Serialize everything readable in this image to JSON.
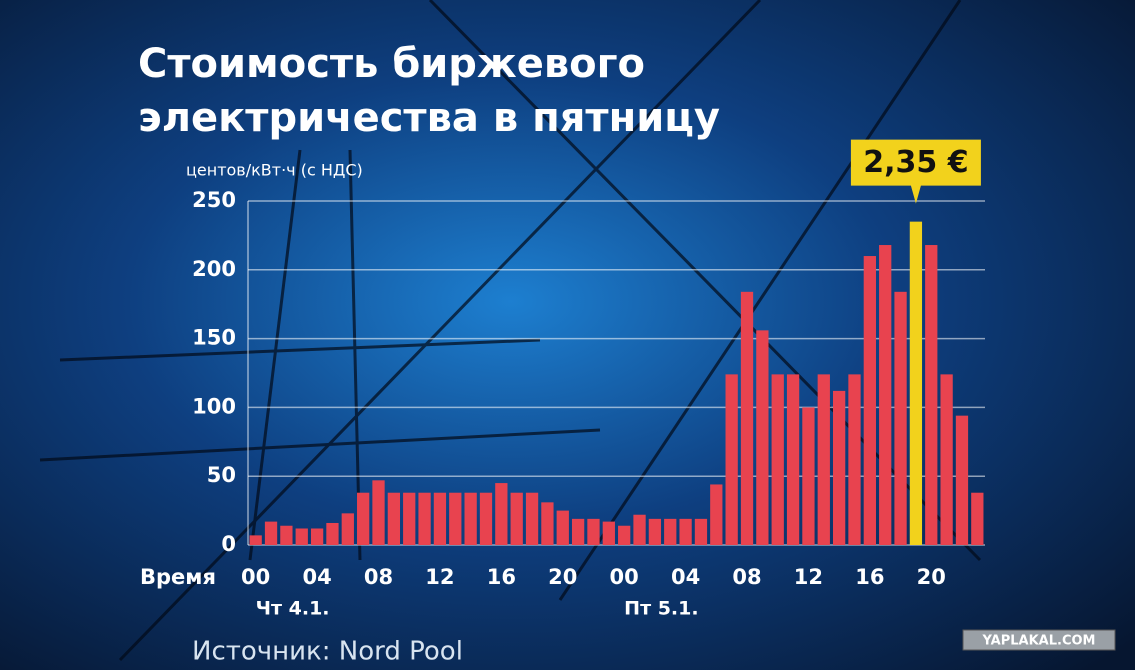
{
  "chart_data": {
    "type": "bar",
    "title": [
      "Стоимость биржевого",
      "электричества в пятницу"
    ],
    "y_label": "центов/кВт·ч (с НДС)",
    "x_label": "Время",
    "categories": [
      "00",
      null,
      null,
      null,
      "04",
      null,
      null,
      null,
      "08",
      null,
      null,
      null,
      "12",
      null,
      null,
      null,
      "16",
      null,
      null,
      null,
      "20",
      null,
      null,
      null,
      "00",
      null,
      null,
      null,
      "04",
      null,
      null,
      null,
      "08",
      null,
      null,
      null,
      "12",
      null,
      null,
      null,
      "16",
      null,
      null,
      null,
      "20",
      null,
      null,
      null
    ],
    "day_labels": [
      "Чт 4.1.",
      "Пт 5.1."
    ],
    "values": [
      7,
      17,
      14,
      12,
      12,
      16,
      23,
      38,
      47,
      38,
      38,
      38,
      38,
      38,
      38,
      38,
      45,
      38,
      38,
      31,
      25,
      19,
      19,
      17,
      14,
      22,
      19,
      19,
      19,
      19,
      44,
      124,
      184,
      156,
      124,
      124,
      100,
      124,
      112,
      124,
      210,
      218,
      184,
      235,
      218,
      124,
      94,
      38
    ],
    "value_labels": [
      null,
      null,
      null,
      null,
      null,
      null,
      null,
      null,
      null,
      null,
      null,
      null,
      null,
      null,
      null,
      null,
      null,
      null,
      null,
      null,
      null,
      null,
      null,
      null,
      null,
      null,
      null,
      null,
      null,
      null,
      null,
      null,
      null,
      null,
      null,
      null,
      null,
      null,
      null,
      null,
      null,
      null,
      null,
      "2,35 €",
      null,
      null,
      null,
      null
    ],
    "colors": [
      "#e8434f",
      "#e8434f",
      "#e8434f",
      "#e8434f",
      "#e8434f",
      "#e8434f",
      "#e8434f",
      "#e8434f",
      "#e8434f",
      "#e8434f",
      "#e8434f",
      "#e8434f",
      "#e8434f",
      "#e8434f",
      "#e8434f",
      "#e8434f",
      "#e8434f",
      "#e8434f",
      "#e8434f",
      "#e8434f",
      "#e8434f",
      "#e8434f",
      "#e8434f",
      "#e8434f",
      "#e8434f",
      "#e8434f",
      "#e8434f",
      "#e8434f",
      "#e8434f",
      "#e8434f",
      "#e8434f",
      "#e8434f",
      "#e8434f",
      "#e8434f",
      "#e8434f",
      "#e8434f",
      "#e8434f",
      "#e8434f",
      "#e8434f",
      "#e8434f",
      "#e8434f",
      "#e8434f",
      "#e8434f",
      "#f2d21c",
      "#e8434f",
      "#e8434f",
      "#e8434f",
      "#e8434f"
    ],
    "ylim": [
      0,
      250
    ],
    "yticks": [
      0,
      50,
      100,
      150,
      200,
      250
    ],
    "grid": true,
    "source": "Источник: Nord Pool"
  },
  "watermark": "YAPLAKAL.COM"
}
